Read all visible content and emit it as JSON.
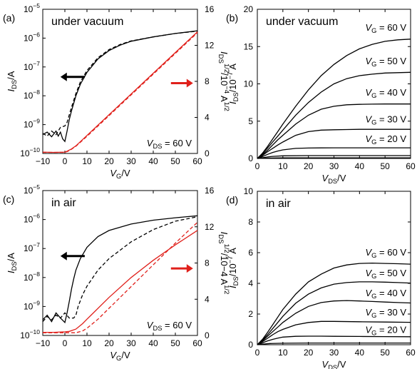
{
  "colors": {
    "black": "#000000",
    "red": "#e0201b"
  },
  "chart_data": [
    {
      "id": "a",
      "type": "line",
      "panel_label": "(a)",
      "title": "under vacuum",
      "annotation": {
        "pre": "V",
        "sub": "DS",
        "post": " = 60 V"
      },
      "xlabel": {
        "pre": "V",
        "sub": "G",
        "post": "/V"
      },
      "ylabel": {
        "pre": "I",
        "sub": "DS",
        "post": "/A"
      },
      "y2label": {
        "pre": "I",
        "sub": "DS",
        "sup": "1/2",
        "mid": "/10",
        "sup2": "−4",
        "post": " A",
        "sup3": "1/2"
      },
      "xlim": [
        -10,
        60
      ],
      "xticks": [
        "−10",
        "0",
        "10",
        "20",
        "30",
        "40",
        "50",
        "60"
      ],
      "ylim_log": [
        -10,
        -5
      ],
      "yticks_left": [
        {
          "base": "10",
          "exp": "−10"
        },
        {
          "base": "10",
          "exp": "−9"
        },
        {
          "base": "10",
          "exp": "−8"
        },
        {
          "base": "10",
          "exp": "−7"
        },
        {
          "base": "10",
          "exp": "−6"
        },
        {
          "base": "10",
          "exp": "−5"
        }
      ],
      "y2lim": [
        0,
        16
      ],
      "yticks_right": [
        "0",
        "4",
        "8",
        "12",
        "16"
      ],
      "series": [
        {
          "axis": "left",
          "style": "solid",
          "color": "#000000",
          "x": [
            -10,
            -8,
            -6,
            -4,
            -3,
            -2,
            -1,
            0,
            1,
            2,
            3,
            5,
            7,
            10,
            15,
            20,
            25,
            30,
            40,
            50,
            60
          ],
          "y": [
            4.5e-10,
            5.5e-10,
            3.8e-10,
            6e-10,
            4e-10,
            5.5e-10,
            3.2e-10,
            2.6e-10,
            6e-10,
            1.5e-09,
            3e-09,
            1e-08,
            2.5e-08,
            6.5e-08,
            1.9e-07,
            3.7e-07,
            5.7e-07,
            7.8e-07,
            1.1e-06,
            1.45e-06,
            1.8e-06
          ]
        },
        {
          "axis": "left",
          "style": "dashed",
          "color": "#000000",
          "x": [
            -10,
            -8,
            -6,
            -4,
            -2,
            0,
            1,
            2,
            3,
            5,
            7,
            10,
            15,
            20,
            25,
            30,
            40,
            50,
            60
          ],
          "y": [
            5e-10,
            4e-10,
            6e-10,
            4.5e-10,
            8e-10,
            9e-10,
            1.2e-09,
            2.2e-09,
            4e-09,
            1.2e-08,
            3e-08,
            7.5e-08,
            2.1e-07,
            4e-07,
            6e-07,
            8e-07,
            1.1e-06,
            1.45e-06,
            1.75e-06
          ]
        },
        {
          "axis": "right",
          "style": "solid",
          "color": "#e0201b",
          "x": [
            -10,
            -5,
            0,
            1,
            3,
            5,
            10,
            20,
            30,
            40,
            50,
            60
          ],
          "y": [
            0.15,
            0.12,
            0.15,
            0.25,
            0.5,
            0.85,
            2.0,
            4.3,
            6.6,
            8.9,
            11.2,
            13.5
          ]
        },
        {
          "axis": "right",
          "style": "dashed",
          "color": "#e0201b",
          "x": [
            -10,
            0,
            2,
            5,
            10,
            20,
            30,
            40,
            50,
            60
          ],
          "y": [
            0.12,
            0.12,
            0.3,
            0.8,
            1.9,
            4.2,
            6.5,
            8.8,
            11.1,
            13.4
          ]
        }
      ],
      "arrows": [
        {
          "direction": "left",
          "color": "#000000",
          "x_from": 9,
          "x_to": -2,
          "y": 4.5e-08,
          "axis": "left"
        },
        {
          "direction": "right",
          "color": "#e0201b",
          "x_from": 48,
          "x_to": 58,
          "y": 7.8,
          "axis": "right"
        }
      ]
    },
    {
      "id": "b",
      "type": "line",
      "panel_label": "(b)",
      "title": "under vacuum",
      "xlabel": {
        "pre": "V",
        "sub": "DS",
        "post": "/V"
      },
      "ylabel": {
        "pre": "I",
        "sub": "DS",
        "post": "/10",
        "sup": "−7",
        "post2": " A"
      },
      "xlim": [
        0,
        60
      ],
      "xticks": [
        "0",
        "10",
        "20",
        "30",
        "40",
        "50",
        "60"
      ],
      "ylim": [
        0,
        20
      ],
      "yticks": [
        "0",
        "5",
        "10",
        "15",
        "20"
      ],
      "series": [
        {
          "name": "V_G = 60 V",
          "x": [
            0,
            2,
            4,
            6,
            8,
            10,
            15,
            20,
            25,
            30,
            35,
            40,
            45,
            50,
            55,
            60
          ],
          "y": [
            0,
            0.7,
            1.6,
            2.6,
            3.6,
            4.6,
            7.0,
            9.2,
            11.1,
            12.6,
            13.8,
            14.7,
            15.3,
            15.7,
            15.9,
            16.0
          ]
        },
        {
          "name": "V_G = 50 V",
          "x": [
            0,
            2,
            4,
            6,
            8,
            10,
            15,
            20,
            25,
            30,
            35,
            40,
            45,
            50,
            55,
            60
          ],
          "y": [
            0,
            0.6,
            1.4,
            2.2,
            3.0,
            3.8,
            5.8,
            7.5,
            8.9,
            10.0,
            10.7,
            11.1,
            11.3,
            11.45,
            11.5,
            11.55
          ]
        },
        {
          "name": "V_G = 40 V",
          "x": [
            0,
            2,
            4,
            6,
            8,
            10,
            15,
            20,
            25,
            30,
            35,
            40,
            45,
            50,
            55,
            60
          ],
          "y": [
            0,
            0.5,
            1.1,
            1.8,
            2.5,
            3.1,
            4.6,
            5.8,
            6.6,
            7.0,
            7.2,
            7.25,
            7.28,
            7.3,
            7.3,
            7.3
          ]
        },
        {
          "name": "V_G = 30 V",
          "x": [
            0,
            2,
            4,
            6,
            8,
            10,
            15,
            20,
            25,
            30,
            35,
            40,
            45,
            50,
            55,
            60
          ],
          "y": [
            0,
            0.4,
            0.9,
            1.35,
            1.8,
            2.2,
            3.1,
            3.6,
            3.8,
            3.85,
            3.88,
            3.9,
            3.9,
            3.9,
            3.9,
            3.9
          ]
        },
        {
          "name": "V_G = 20 V",
          "x": [
            0,
            2,
            4,
            6,
            8,
            10,
            15,
            20,
            25,
            30,
            40,
            50,
            60
          ],
          "y": [
            0,
            0.25,
            0.55,
            0.8,
            1.0,
            1.15,
            1.35,
            1.4,
            1.42,
            1.43,
            1.43,
            1.43,
            1.43
          ]
        },
        {
          "name": "",
          "x": [
            0,
            2,
            4,
            6,
            10,
            20,
            30,
            40,
            50,
            60
          ],
          "y": [
            0,
            0.1,
            0.2,
            0.28,
            0.35,
            0.38,
            0.38,
            0.38,
            0.38,
            0.38
          ]
        },
        {
          "name": "",
          "x": [
            0,
            2,
            5,
            10,
            20,
            40,
            60
          ],
          "y": [
            0,
            0.03,
            0.06,
            0.08,
            0.09,
            0.09,
            0.09
          ]
        }
      ],
      "labels": [
        {
          "pre": "V",
          "sub": "G",
          "post": " = 60 V",
          "y": 17.5
        },
        {
          "pre": "V",
          "sub": "G",
          "post": " = 50 V",
          "y": 13.0
        },
        {
          "pre": "V",
          "sub": "G",
          "post": " = 40 V",
          "y": 8.8
        },
        {
          "pre": "V",
          "sub": "G",
          "post": " = 30 V",
          "y": 5.2
        },
        {
          "pre": "V",
          "sub": "G",
          "post": " = 20 V",
          "y": 2.6
        }
      ]
    },
    {
      "id": "c",
      "type": "line",
      "panel_label": "(c)",
      "title": "in air",
      "annotation": {
        "pre": "V",
        "sub": "DS",
        "post": " = 60 V"
      },
      "xlabel": {
        "pre": "V",
        "sub": "G",
        "post": "/V"
      },
      "ylabel": {
        "pre": "I",
        "sub": "DS",
        "post": "/A"
      },
      "y2label": {
        "pre": "I",
        "sub": "DS",
        "sup": "1/2",
        "mid": "/10−4 A",
        "sup2": "",
        "post": "",
        "sup3": "1/2"
      },
      "xlim": [
        -10,
        60
      ],
      "xticks": [
        "−10",
        "0",
        "10",
        "20",
        "30",
        "40",
        "50",
        "60"
      ],
      "ylim_log": [
        -10,
        -5
      ],
      "yticks_left": [
        {
          "base": "10",
          "exp": "−10"
        },
        {
          "base": "10",
          "exp": "−9"
        },
        {
          "base": "10",
          "exp": "−8"
        },
        {
          "base": "10",
          "exp": "−7"
        },
        {
          "base": "10",
          "exp": "−6"
        },
        {
          "base": "10",
          "exp": "−5"
        }
      ],
      "y2lim": [
        0,
        16
      ],
      "yticks_right": [
        "0",
        "4",
        "8",
        "12",
        "16"
      ],
      "series": [
        {
          "axis": "left",
          "style": "solid",
          "color": "#000000",
          "x": [
            -10,
            -8,
            -6,
            -4,
            -2,
            0,
            1,
            2,
            3,
            4,
            5,
            7,
            10,
            15,
            20,
            30,
            40,
            50,
            60
          ],
          "y": [
            3.5e-10,
            5e-10,
            3e-10,
            6e-10,
            4e-10,
            2.8e-10,
            6e-10,
            1.5e-09,
            4e-09,
            9e-09,
            1.8e-08,
            4.5e-08,
            1.1e-07,
            2.6e-07,
            4.2e-07,
            7e-07,
            9.5e-07,
            1.15e-06,
            1.35e-06
          ]
        },
        {
          "axis": "left",
          "style": "dashed",
          "color": "#000000",
          "x": [
            -10,
            -8,
            -6,
            -4,
            -2,
            0,
            2,
            4,
            5,
            6,
            8,
            10,
            15,
            20,
            30,
            40,
            50,
            60
          ],
          "y": [
            3e-10,
            4.5e-10,
            3.5e-10,
            5e-10,
            4e-10,
            6e-10,
            4e-10,
            4e-10,
            5e-10,
            1e-09,
            2.5e-09,
            5e-09,
            1.8e-08,
            4.5e-08,
            1.7e-07,
            4.5e-07,
            8.8e-07,
            1.25e-06
          ]
        },
        {
          "axis": "right",
          "style": "solid",
          "color": "#e0201b",
          "x": [
            -10,
            -5,
            0,
            2,
            5,
            8,
            10,
            20,
            30,
            40,
            50,
            60
          ],
          "y": [
            0.35,
            0.35,
            0.4,
            0.45,
            0.7,
            1.3,
            1.8,
            4.2,
            6.4,
            8.3,
            10.0,
            11.6
          ]
        },
        {
          "axis": "right",
          "style": "dashed",
          "color": "#e0201b",
          "x": [
            -10,
            0,
            5,
            8,
            10,
            15,
            20,
            30,
            40,
            50,
            60
          ],
          "y": [
            0.3,
            0.3,
            0.3,
            0.5,
            0.8,
            1.8,
            3.0,
            5.4,
            7.8,
            10.2,
            12.5
          ]
        }
      ],
      "arrows": [
        {
          "direction": "left",
          "color": "#000000",
          "x_from": 9,
          "x_to": -2,
          "y": 5.5e-08,
          "axis": "left"
        },
        {
          "direction": "right",
          "color": "#e0201b",
          "x_from": 48,
          "x_to": 58,
          "y": 7.4,
          "axis": "right"
        }
      ]
    },
    {
      "id": "d",
      "type": "line",
      "panel_label": "(d)",
      "title": "in air",
      "xlabel": {
        "pre": "V",
        "sub": "DS",
        "post": "/V"
      },
      "ylabel": {
        "pre": "I",
        "sub": "DS",
        "post": "/10",
        "sup": "−7",
        "post2": " A"
      },
      "xlim": [
        0,
        60
      ],
      "xticks": [
        "0",
        "10",
        "20",
        "30",
        "40",
        "50",
        "60"
      ],
      "ylim": [
        0,
        10
      ],
      "yticks": [
        "0",
        "2",
        "4",
        "6",
        "8",
        "10"
      ],
      "series": [
        {
          "name": "V_G = 60 V",
          "x": [
            0,
            2,
            4,
            6,
            8,
            10,
            15,
            20,
            25,
            30,
            35,
            40,
            45,
            50,
            55,
            60
          ],
          "y": [
            0,
            0.35,
            0.8,
            1.3,
            1.8,
            2.3,
            3.3,
            4.1,
            4.6,
            5.0,
            5.2,
            5.3,
            5.32,
            5.3,
            5.28,
            5.25
          ]
        },
        {
          "name": "V_G = 50 V",
          "x": [
            0,
            2,
            4,
            6,
            8,
            10,
            15,
            20,
            25,
            30,
            35,
            40,
            45,
            50,
            55,
            60
          ],
          "y": [
            0,
            0.3,
            0.65,
            1.05,
            1.45,
            1.85,
            2.7,
            3.3,
            3.7,
            3.95,
            4.05,
            4.1,
            4.1,
            4.08,
            4.05,
            4.02
          ]
        },
        {
          "name": "V_G = 40 V",
          "x": [
            0,
            2,
            4,
            6,
            8,
            10,
            15,
            20,
            25,
            30,
            35,
            40,
            45,
            50,
            55,
            60
          ],
          "y": [
            0,
            0.25,
            0.55,
            0.85,
            1.15,
            1.45,
            2.05,
            2.5,
            2.75,
            2.85,
            2.88,
            2.85,
            2.82,
            2.78,
            2.75,
            2.72
          ]
        },
        {
          "name": "V_G = 30 V",
          "x": [
            0,
            2,
            4,
            6,
            8,
            10,
            15,
            20,
            25,
            30,
            40,
            50,
            60
          ],
          "y": [
            0,
            0.2,
            0.42,
            0.65,
            0.85,
            1.0,
            1.3,
            1.45,
            1.52,
            1.52,
            1.5,
            1.48,
            1.46
          ]
        },
        {
          "name": "V_G = 20 V",
          "x": [
            0,
            2,
            4,
            6,
            8,
            10,
            15,
            20,
            25,
            30,
            40,
            50,
            60
          ],
          "y": [
            0,
            0.12,
            0.25,
            0.35,
            0.43,
            0.5,
            0.55,
            0.56,
            0.56,
            0.55,
            0.54,
            0.53,
            0.52
          ]
        },
        {
          "name": "",
          "x": [
            0,
            2,
            5,
            10,
            20,
            40,
            60
          ],
          "y": [
            0,
            0.04,
            0.08,
            0.1,
            0.11,
            0.11,
            0.11
          ]
        }
      ],
      "labels": [
        {
          "pre": "V",
          "sub": "G",
          "post": " = 60 V",
          "y": 6.0
        },
        {
          "pre": "V",
          "sub": "G",
          "post": " = 50 V",
          "y": 4.65
        },
        {
          "pre": "V",
          "sub": "G",
          "post": " = 40 V",
          "y": 3.35
        },
        {
          "pre": "V",
          "sub": "G",
          "post": " = 30 V",
          "y": 2.1
        },
        {
          "pre": "V",
          "sub": "G",
          "post": " = 20 V",
          "y": 0.95
        }
      ]
    }
  ]
}
